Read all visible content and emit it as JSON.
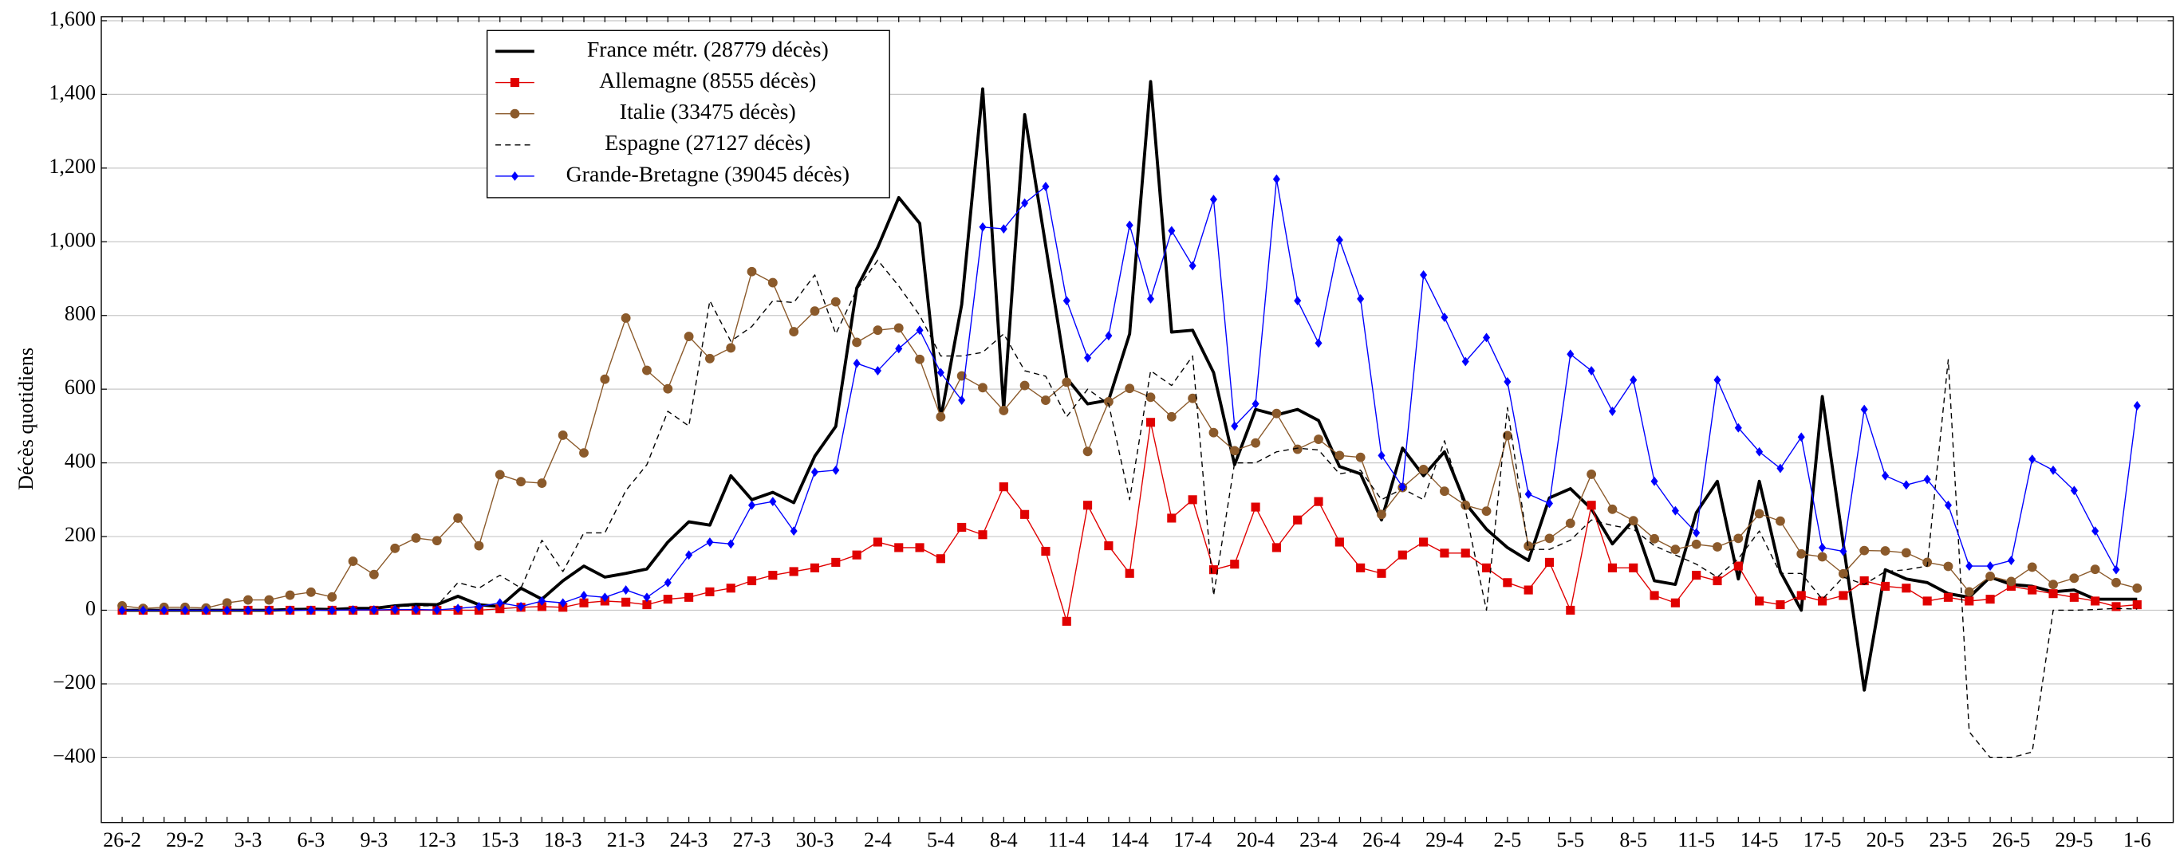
{
  "chart_data": {
    "type": "line",
    "y_label": "Décès quotidiens",
    "categories": [
      "26-2",
      null,
      null,
      "29-2",
      null,
      null,
      "3-3",
      null,
      null,
      "6-3",
      null,
      null,
      "9-3",
      null,
      null,
      "12-3",
      null,
      null,
      "15-3",
      null,
      null,
      "18-3",
      null,
      null,
      "21-3",
      null,
      null,
      "24-3",
      null,
      null,
      "27-3",
      null,
      null,
      "30-3",
      null,
      null,
      "2-4",
      null,
      null,
      "5-4",
      null,
      null,
      "8-4",
      null,
      null,
      "11-4",
      null,
      null,
      "14-4",
      null,
      null,
      "17-4",
      null,
      null,
      "20-4",
      null,
      null,
      "23-4",
      null,
      null,
      "26-4",
      null,
      null,
      "29-4",
      null,
      null,
      "2-5",
      null,
      null,
      "5-5",
      null,
      null,
      "8-5",
      null,
      null,
      "11-5",
      null,
      null,
      "14-5",
      null,
      null,
      "17-5",
      null,
      null,
      "20-5",
      null,
      null,
      "23-5",
      null,
      null,
      "26-5",
      null,
      null,
      "29-5",
      null,
      null,
      "1-6"
    ],
    "ylim": [
      -576,
      1611
    ],
    "yticks": [
      {
        "value": -400,
        "label": "−400"
      },
      {
        "value": -200,
        "label": "−200"
      },
      0,
      200,
      400,
      600,
      800,
      {
        "value": 1000,
        "label": "1,000"
      },
      {
        "value": 1200,
        "label": "1,200"
      },
      {
        "value": 1400,
        "label": "1,400"
      },
      {
        "value": 1600,
        "label": "1,600"
      }
    ],
    "grid": true,
    "legend": "upper left",
    "series": [
      {
        "name": "France métr. (28779 décès)",
        "color": "#000000",
        "marker": null,
        "dashed": false,
        "width": 2.2,
        "values": [
          0,
          0,
          0,
          0,
          0,
          0,
          0,
          0,
          2,
          3,
          2,
          5,
          5,
          12,
          16,
          15,
          38,
          15,
          10,
          60,
          30,
          80,
          120,
          90,
          100,
          112,
          185,
          240,
          231,
          365,
          300,
          320,
          292,
          418,
          499,
          875,
          985,
          1120,
          1050,
          520,
          830,
          1415,
          545,
          1345,
          990,
          630,
          560,
          570,
          750,
          1435,
          755,
          760,
          645,
          395,
          545,
          530,
          545,
          515,
          390,
          370,
          245,
          440,
          365,
          430,
          290,
          220,
          170,
          135,
          305,
          330,
          275,
          180,
          245,
          80,
          70,
          265,
          350,
          85,
          350,
          105,
          0,
          580,
          180,
          -217,
          110,
          85,
          75,
          45,
          35,
          90,
          70,
          65,
          50,
          55,
          30,
          30,
          30
        ]
      },
      {
        "name": "Allemagne (8555 décès)",
        "color": "#e00000",
        "marker": "square",
        "dashed": false,
        "width": 0.8,
        "values": [
          0,
          0,
          0,
          0,
          0,
          0,
          0,
          0,
          0,
          0,
          0,
          0,
          0,
          0,
          0,
          0,
          0,
          0,
          4,
          8,
          10,
          8,
          20,
          25,
          22,
          15,
          30,
          35,
          50,
          60,
          80,
          95,
          105,
          115,
          130,
          150,
          185,
          170,
          170,
          140,
          225,
          205,
          335,
          260,
          160,
          -30,
          285,
          175,
          100,
          510,
          250,
          300,
          110,
          125,
          280,
          170,
          245,
          295,
          185,
          115,
          100,
          150,
          185,
          155,
          155,
          115,
          75,
          55,
          130,
          0,
          285,
          115,
          115,
          40,
          20,
          95,
          80,
          120,
          25,
          15,
          40,
          25,
          40,
          80,
          65,
          60,
          25,
          35,
          25,
          30,
          65,
          55,
          45,
          35,
          25,
          10,
          15
        ]
      },
      {
        "name": "Italie (33475 décès)",
        "color": "#8b5a2b",
        "marker": "circle",
        "dashed": false,
        "width": 0.8,
        "values": [
          12,
          5,
          8,
          8,
          6,
          20,
          28,
          28,
          41,
          49,
          36,
          133,
          97,
          168,
          196,
          189,
          250,
          175,
          368,
          349,
          345,
          475,
          427,
          627,
          793,
          651,
          601,
          743,
          683,
          712,
          919,
          889,
          756,
          812,
          837,
          727,
          760,
          766,
          681,
          525,
          636,
          604,
          542,
          610,
          570,
          619,
          431,
          566,
          602,
          578,
          525,
          575,
          482,
          433,
          454,
          534,
          437,
          464,
          420,
          415,
          260,
          333,
          382,
          323,
          285,
          269,
          474,
          174,
          195,
          236,
          369,
          274,
          243,
          194,
          165,
          179,
          172,
          195,
          262,
          242,
          153,
          145,
          99,
          162,
          161,
          156,
          130,
          119,
          50,
          92,
          78,
          117,
          70,
          87,
          111,
          75,
          60
        ]
      },
      {
        "name": "Espagne (27127 décès)",
        "color": "#000000",
        "marker": null,
        "dashed": true,
        "width": 0.8,
        "values": [
          0,
          0,
          0,
          0,
          0,
          0,
          0,
          0,
          1,
          3,
          5,
          5,
          8,
          10,
          12,
          12,
          75,
          60,
          95,
          60,
          190,
          105,
          210,
          210,
          325,
          395,
          540,
          500,
          840,
          730,
          770,
          840,
          835,
          910,
          750,
          870,
          950,
          880,
          800,
          690,
          690,
          700,
          750,
          650,
          635,
          525,
          600,
          560,
          300,
          650,
          610,
          690,
          40,
          400,
          400,
          430,
          440,
          435,
          370,
          380,
          300,
          330,
          300,
          460,
          270,
          0,
          550,
          165,
          165,
          190,
          245,
          230,
          220,
          175,
          150,
          125,
          90,
          140,
          215,
          100,
          100,
          30,
          90,
          70,
          105,
          110,
          120,
          680,
          -330,
          -400,
          -400,
          -385,
          0,
          0,
          2,
          5,
          3
        ]
      },
      {
        "name": "Grande-Bretagne (39045 décès)",
        "color": "#0000ff",
        "marker": "diamond",
        "dashed": false,
        "width": 0.8,
        "values": [
          0,
          0,
          0,
          0,
          0,
          0,
          0,
          0,
          0,
          0,
          0,
          1,
          1,
          2,
          2,
          1,
          5,
          10,
          20,
          10,
          25,
          20,
          40,
          35,
          55,
          35,
          75,
          150,
          185,
          180,
          285,
          295,
          215,
          375,
          380,
          670,
          650,
          710,
          760,
          645,
          570,
          1040,
          1035,
          1105,
          1150,
          840,
          685,
          745,
          1045,
          845,
          1030,
          935,
          1115,
          500,
          560,
          1170,
          840,
          725,
          1005,
          845,
          420,
          335,
          910,
          795,
          675,
          740,
          620,
          315,
          290,
          695,
          650,
          540,
          625,
          350,
          270,
          210,
          625,
          495,
          430,
          385,
          470,
          170,
          160,
          545,
          365,
          340,
          355,
          285,
          120,
          120,
          135,
          410,
          380,
          325,
          215,
          110,
          555
        ]
      }
    ]
  }
}
